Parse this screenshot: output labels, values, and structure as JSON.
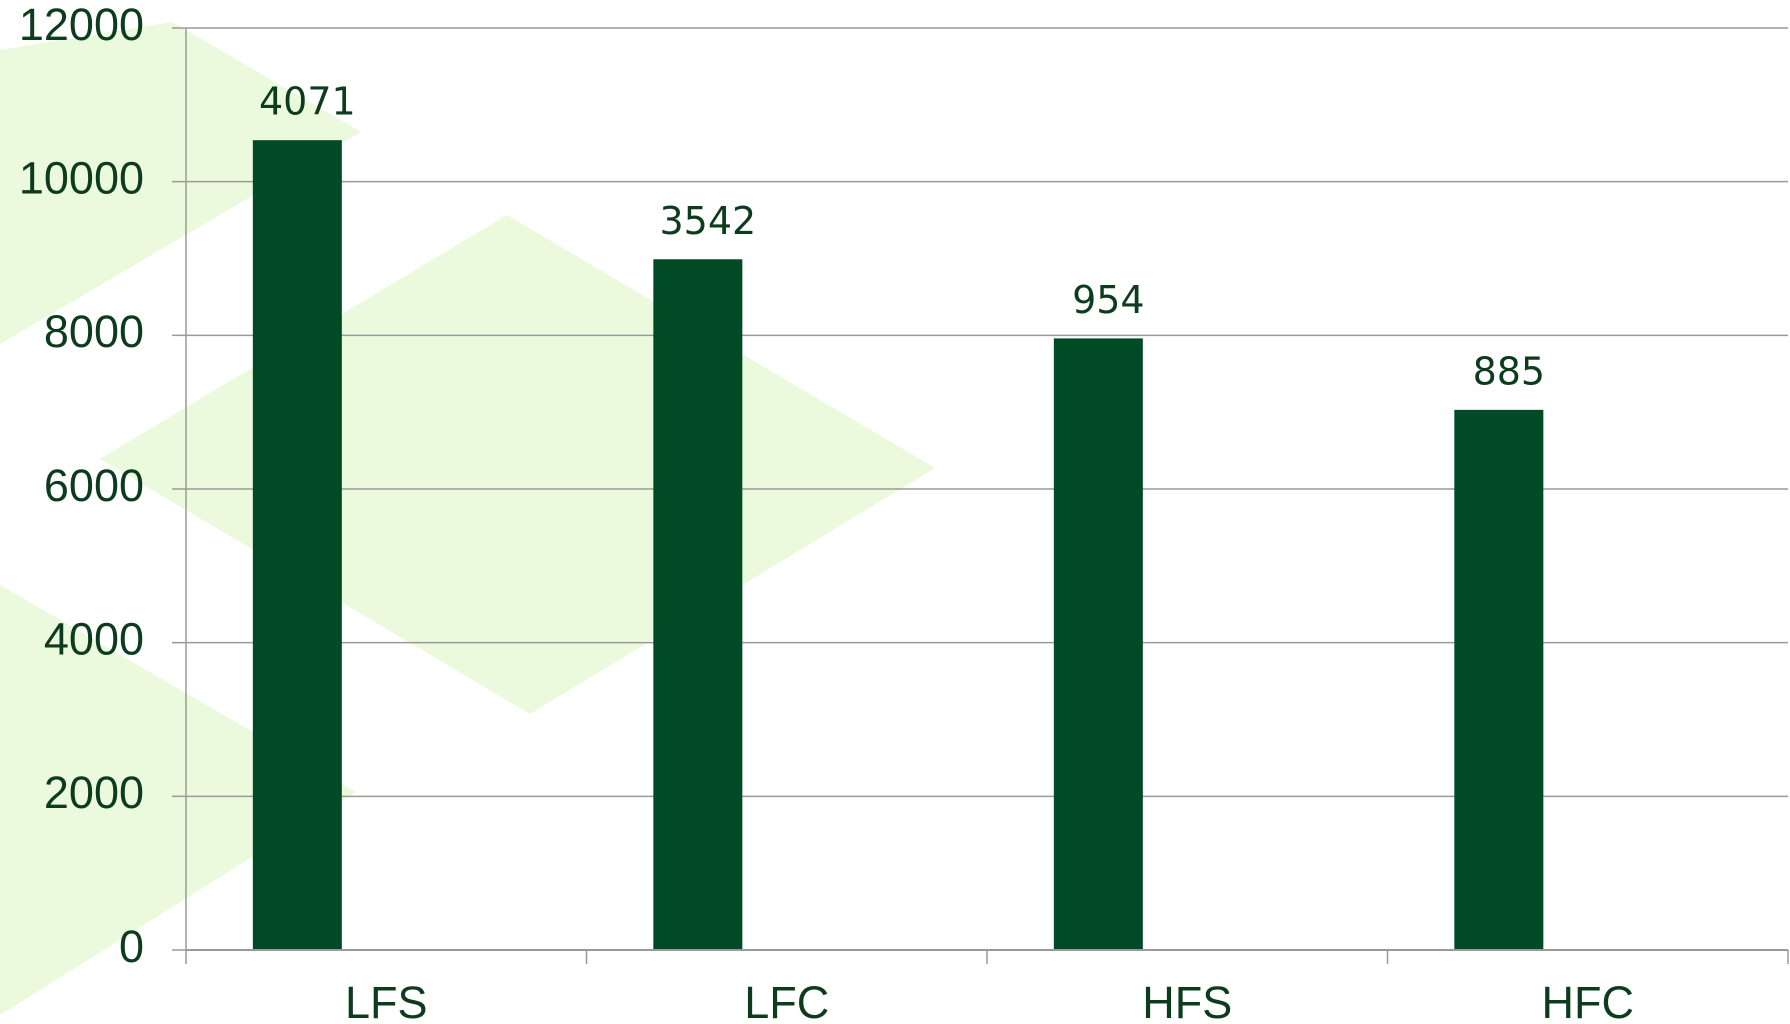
{
  "chart_data": {
    "type": "bar",
    "categories": [
      "LFS",
      "LFC",
      "HFS",
      "HFC"
    ],
    "values": [
      10540,
      8990,
      7960,
      7030
    ],
    "annotations": [
      "4071",
      "3542",
      "954",
      "885"
    ],
    "color": "#004b25",
    "ylim": [
      0,
      12000
    ],
    "yticks": [
      0,
      2000,
      4000,
      6000,
      8000,
      10000,
      12000
    ],
    "grid": true
  }
}
